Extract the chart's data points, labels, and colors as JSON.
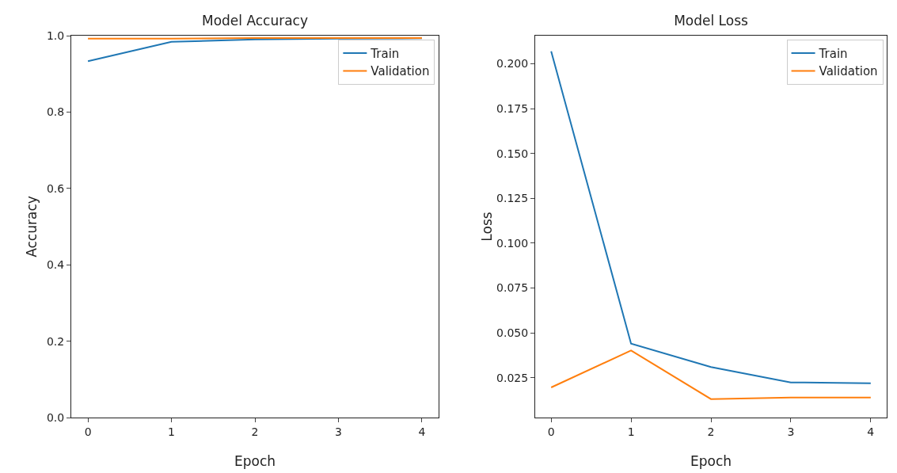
{
  "chart_data": [
    {
      "type": "line",
      "title": "Model Accuracy",
      "xlabel": "Epoch",
      "ylabel": "Accuracy",
      "x": [
        0,
        1,
        2,
        3,
        4
      ],
      "xlim": [
        -0.2,
        4.2
      ],
      "xticks": [
        0,
        1,
        2,
        3,
        4
      ],
      "ylim": [
        0,
        1
      ],
      "yticks": [
        {
          "value": 0,
          "label": "0.0"
        },
        0.2,
        0.4,
        0.6,
        0.8,
        {
          "value": 1,
          "label": "1.0"
        }
      ],
      "grid": false,
      "legend": "top right",
      "series": [
        {
          "name": "Train",
          "color": "#1f77b4",
          "values": [
            0.933,
            0.984,
            0.99,
            0.992,
            0.993
          ]
        },
        {
          "name": "Validation",
          "color": "#ff7f0e",
          "values": [
            0.992,
            0.992,
            0.994,
            0.994,
            0.994
          ]
        }
      ]
    },
    {
      "type": "line",
      "title": "Model Loss",
      "xlabel": "Epoch",
      "ylabel": "Loss",
      "x": [
        0,
        1,
        2,
        3,
        4
      ],
      "xlim": [
        -0.2,
        4.2
      ],
      "xticks": [
        0,
        1,
        2,
        3,
        4
      ],
      "ylim": [
        0.0028,
        0.2157
      ],
      "yticks": [
        {
          "value": 0.025,
          "label": "0.025"
        },
        {
          "value": 0.05,
          "label": "0.050"
        },
        {
          "value": 0.075,
          "label": "0.075"
        },
        {
          "value": 0.1,
          "label": "0.100"
        },
        {
          "value": 0.125,
          "label": "0.125"
        },
        {
          "value": 0.15,
          "label": "0.150"
        },
        {
          "value": 0.175,
          "label": "0.175"
        },
        {
          "value": 0.2,
          "label": "0.200"
        }
      ],
      "grid": false,
      "legend": "top right",
      "series": [
        {
          "name": "Train",
          "color": "#1f77b4",
          "values": [
            0.207,
            0.044,
            0.031,
            0.0224,
            0.0219
          ]
        },
        {
          "name": "Validation",
          "color": "#ff7f0e",
          "values": [
            0.0196,
            0.0402,
            0.0131,
            0.014,
            0.014
          ]
        }
      ]
    }
  ]
}
